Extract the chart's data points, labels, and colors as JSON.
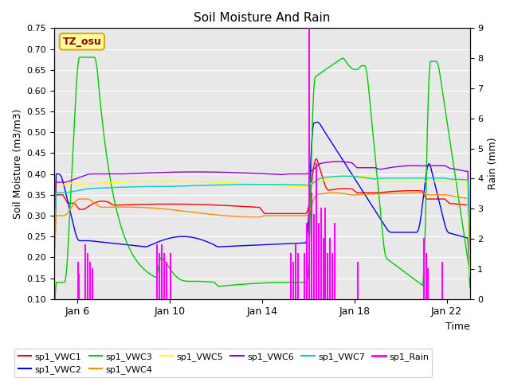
{
  "title": "Soil Moisture And Rain",
  "xlabel": "Time",
  "ylabel_left": "Soil Moisture (m3/m3)",
  "ylabel_right": "Rain (mm)",
  "ylim_left": [
    0.1,
    0.75
  ],
  "ylim_right": [
    0.0,
    9.0
  ],
  "yticks_left": [
    0.1,
    0.15,
    0.2,
    0.25,
    0.3,
    0.35,
    0.4,
    0.45,
    0.5,
    0.55,
    0.6,
    0.65,
    0.7,
    0.75
  ],
  "yticks_right": [
    0.0,
    1.0,
    2.0,
    3.0,
    4.0,
    5.0,
    6.0,
    7.0,
    8.0,
    9.0
  ],
  "annotation_text": "TZ_osu",
  "annotation_color": "#8B0000",
  "annotation_bg": "#FFFF99",
  "annotation_border": "#DAA520",
  "colors": {
    "sp1_VWC1": "#FF0000",
    "sp1_VWC2": "#0000FF",
    "sp1_VWC3": "#00CC00",
    "sp1_VWC4": "#FF8C00",
    "sp1_VWC5": "#FFFF00",
    "sp1_VWC6": "#9400D3",
    "sp1_VWC7": "#00CCCC",
    "sp1_Rain": "#FF00FF"
  },
  "background_color": "#E8E8E8",
  "grid_color": "#FFFFFF",
  "xtick_positions": [
    1,
    5,
    9,
    13,
    17
  ],
  "xtick_labels": [
    "Jan 6",
    "Jan 10",
    "Jan 14",
    "Jan 18",
    "Jan 22"
  ],
  "xlim": [
    0,
    18
  ]
}
